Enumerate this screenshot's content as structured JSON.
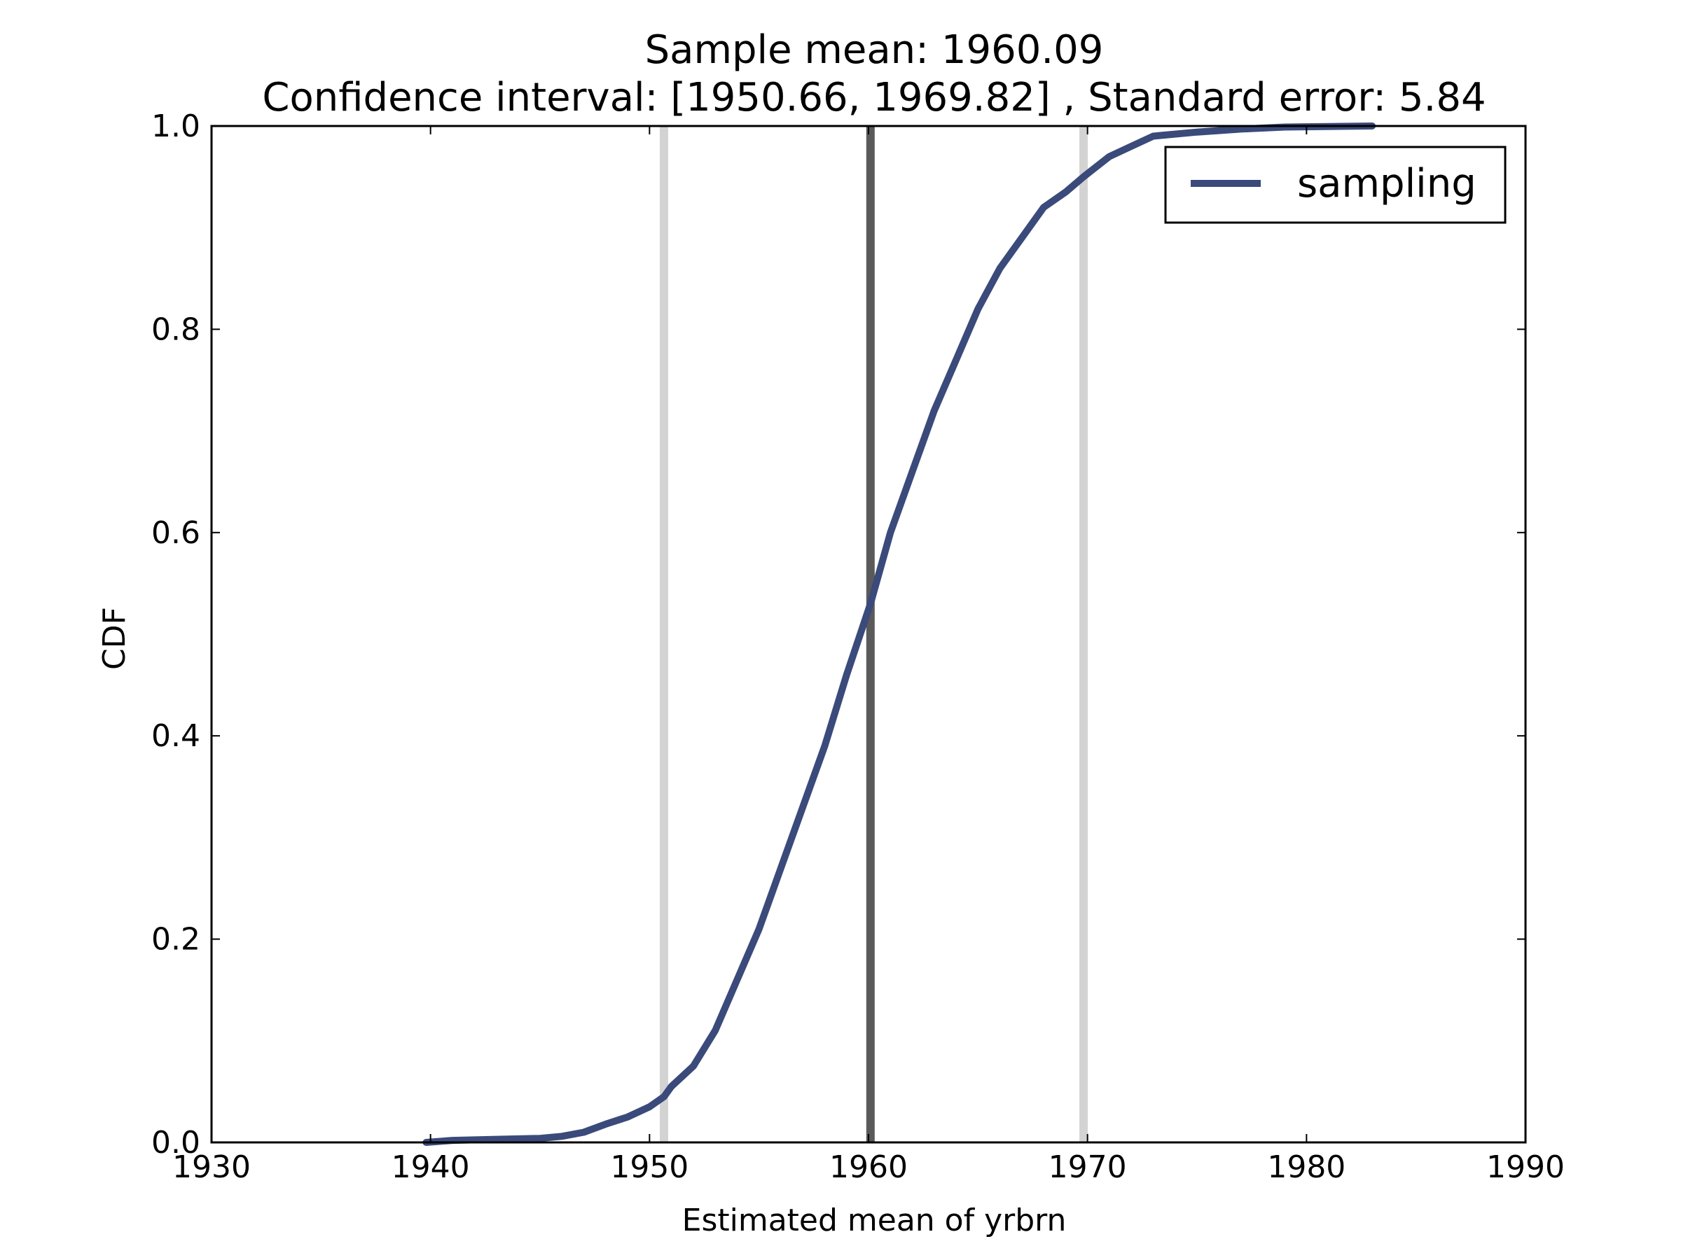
{
  "chart_data": {
    "type": "line",
    "title": "Sample mean: 1960.09",
    "subtitle": "Confidence interval: [1950.66, 1969.82] , Standard error: 5.84",
    "xlabel": "Estimated mean of yrbrn",
    "ylabel": "CDF",
    "xlim": [
      1930,
      1990
    ],
    "ylim": [
      0.0,
      1.0
    ],
    "x_ticks": [
      1930,
      1940,
      1950,
      1960,
      1970,
      1980,
      1990
    ],
    "y_ticks": [
      0.0,
      0.2,
      0.4,
      0.6,
      0.8,
      1.0
    ],
    "x_tick_labels": [
      "1930",
      "1940",
      "1950",
      "1960",
      "1970",
      "1980",
      "1990"
    ],
    "y_tick_labels": [
      "0.0",
      "0.2",
      "0.4",
      "0.6",
      "0.8",
      "1.0"
    ],
    "grid": false,
    "legend": {
      "position": "top-right"
    },
    "reference_lines": [
      {
        "x": 1950.66,
        "color": "#d3d3d3"
      },
      {
        "x": 1960.09,
        "color": "#5a5a5a"
      },
      {
        "x": 1969.82,
        "color": "#d3d3d3"
      }
    ],
    "series": [
      {
        "name": "sampling",
        "color": "#3a4a7a",
        "x": [
          1939.8,
          1941.0,
          1943.0,
          1945.0,
          1946.0,
          1947.0,
          1948.0,
          1949.0,
          1950.0,
          1950.66,
          1951.0,
          1952.0,
          1953.0,
          1954.0,
          1955.0,
          1956.0,
          1957.0,
          1958.0,
          1959.0,
          1960.09,
          1961.0,
          1962.0,
          1963.0,
          1964.0,
          1965.0,
          1966.0,
          1967.0,
          1968.0,
          1969.0,
          1969.82,
          1971.0,
          1972.0,
          1973.0,
          1975.0,
          1977.0,
          1979.0,
          1983.0
        ],
        "y": [
          0.0,
          0.002,
          0.003,
          0.004,
          0.006,
          0.01,
          0.018,
          0.025,
          0.035,
          0.045,
          0.055,
          0.075,
          0.11,
          0.16,
          0.21,
          0.27,
          0.33,
          0.39,
          0.46,
          0.53,
          0.6,
          0.66,
          0.72,
          0.77,
          0.82,
          0.86,
          0.89,
          0.92,
          0.935,
          0.95,
          0.97,
          0.98,
          0.99,
          0.994,
          0.997,
          0.999,
          1.0
        ]
      }
    ]
  }
}
